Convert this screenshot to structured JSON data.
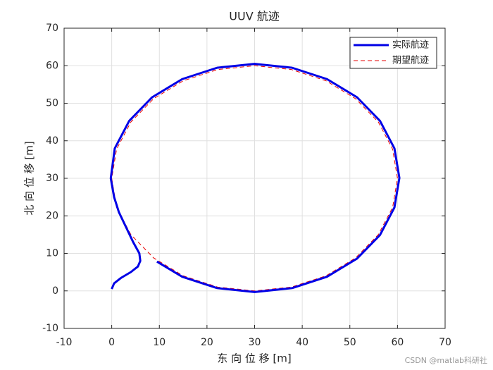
{
  "chart_data": {
    "type": "line",
    "title": "UUV 航迹",
    "x_label": "东 向 位 移 [m]",
    "y_label": "北 向 位 移 [m]",
    "xlim": [
      -10,
      70
    ],
    "ylim": [
      -10,
      70
    ],
    "xticks": [
      -10,
      0,
      10,
      20,
      30,
      40,
      50,
      60,
      70
    ],
    "yticks": [
      -10,
      0,
      10,
      20,
      30,
      40,
      50,
      60,
      70
    ],
    "grid": true,
    "legend": "top-right",
    "series": [
      {
        "name": "实际航迹",
        "color": "#0000e6",
        "style": "solid",
        "x": [
          0,
          0.5,
          2,
          4,
          5.5,
          6,
          5.8,
          4.5,
          3,
          1.5,
          0.5,
          -0.2,
          0.64,
          3.67,
          8.5,
          14.8,
          22.13,
          30,
          37.87,
          45.2,
          51.5,
          56.33,
          59.36,
          60.4,
          59.36,
          56.33,
          51.5,
          45.2,
          37.87,
          30,
          22.13,
          14.8,
          9.5
        ],
        "y": [
          0.5,
          2,
          3.5,
          5,
          6.5,
          8,
          10,
          13,
          17,
          21,
          25,
          30,
          37.97,
          45.3,
          51.6,
          56.43,
          59.46,
          60.5,
          59.46,
          56.43,
          51.6,
          45.3,
          37.97,
          30.1,
          22.23,
          14.9,
          8.6,
          3.77,
          0.74,
          -0.3,
          0.74,
          3.77,
          7.8
        ]
      },
      {
        "name": "期望航迹",
        "color": "#e60000",
        "style": "dashed",
        "x": [
          60,
          58.98,
          55.98,
          51.21,
          45,
          37.76,
          30,
          22.24,
          15,
          8.79,
          4.02,
          1.02,
          0,
          1.02,
          4.02,
          8.79,
          15,
          22.24,
          30,
          37.76,
          45,
          51.21,
          55.98,
          58.98,
          60
        ],
        "y": [
          30,
          37.76,
          45,
          51.21,
          55.98,
          58.98,
          60,
          58.98,
          55.98,
          51.21,
          45,
          37.76,
          30,
          22.24,
          15,
          8.79,
          4.02,
          1.02,
          0,
          1.02,
          4.02,
          8.79,
          15,
          22.24,
          30
        ]
      }
    ]
  },
  "watermark": "CSDN @matlab科研社"
}
